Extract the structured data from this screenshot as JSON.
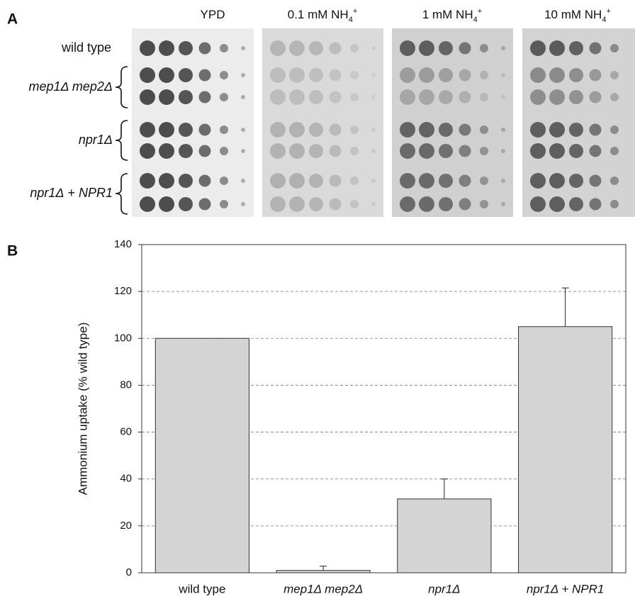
{
  "panel_labels": [
    "A",
    "B"
  ],
  "spot_assay": {
    "column_headers": [
      {
        "label": "YPD"
      },
      {
        "label": "0.1 mM NH",
        "subscript": "4",
        "superscript": "+"
      },
      {
        "label": "1 mM NH",
        "subscript": "4",
        "superscript": "+"
      },
      {
        "label": "10 mM NH",
        "subscript": "4",
        "superscript": "+"
      }
    ],
    "row_labels": [
      [
        {
          "text": "wild type"
        }
      ],
      [
        {
          "text": "mep1Δ mep2Δ",
          "italic": true
        }
      ],
      [
        {
          "text": "npr1Δ",
          "italic": true
        }
      ],
      [
        {
          "text": "npr1Δ",
          "italic": true
        },
        {
          "text": " + "
        },
        {
          "text": "NPR1",
          "italic": true
        }
      ]
    ]
  },
  "chart_data": {
    "type": "bar",
    "y_label": "Ammonium uptake (% wild type)",
    "categories": [
      "wild type",
      "mep1Δ mep2Δ",
      "npr1Δ",
      "npr1Δ + NPR1"
    ],
    "category_italic": [
      false,
      true,
      true,
      true
    ],
    "values": [
      100,
      1,
      31.5,
      105
    ],
    "errors": [
      null,
      1.8,
      8.5,
      16.5
    ],
    "color": "#d4d4d4",
    "ylim": [
      0,
      140
    ],
    "yticks": [
      0,
      20,
      40,
      60,
      80,
      100,
      120,
      140
    ],
    "grid": true
  }
}
